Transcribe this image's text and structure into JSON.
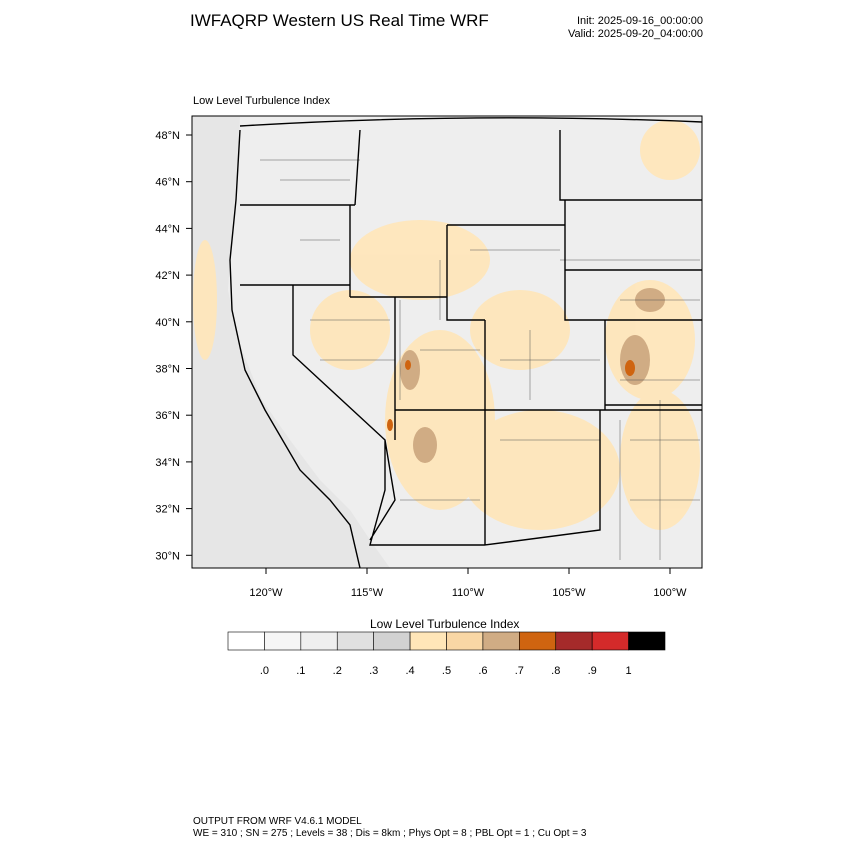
{
  "header": {
    "title": "IWFAQRP Western US Real Time WRF",
    "init": "Init: 2025-09-16_00:00:00",
    "valid": "Valid: 2025-09-20_04:00:00"
  },
  "map": {
    "subtitle": "Low Level Turbulence Index",
    "lat_labels": [
      "48°N",
      "46°N",
      "44°N",
      "42°N",
      "40°N",
      "38°N",
      "36°N",
      "34°N",
      "32°N",
      "30°N"
    ],
    "lon_labels": [
      "120°W",
      "115°W",
      "110°W",
      "105°W",
      "100°W"
    ]
  },
  "colorbar": {
    "title": "Low Level Turbulence Index",
    "colors": [
      "#ffffff",
      "#f6f6f6",
      "#efefef",
      "#e0e0e0",
      "#d2d2d2",
      "#ffe6b8",
      "#f9d7a5",
      "#d0ac84",
      "#cf6410",
      "#a52a2a",
      "#d42a2a",
      "#000000"
    ],
    "labels": [
      ".0",
      ".1",
      ".2",
      ".3",
      ".4",
      ".5",
      ".6",
      ".7",
      ".8",
      ".9",
      "1"
    ]
  },
  "footer": {
    "line1": "OUTPUT FROM WRF V4.6.1 MODEL",
    "line2": "WE = 310 ; SN = 275 ; Levels = 38 ; Dis = 8km ; Phys Opt = 8 ; PBL Opt = 1 ; Cu Opt = 3"
  }
}
